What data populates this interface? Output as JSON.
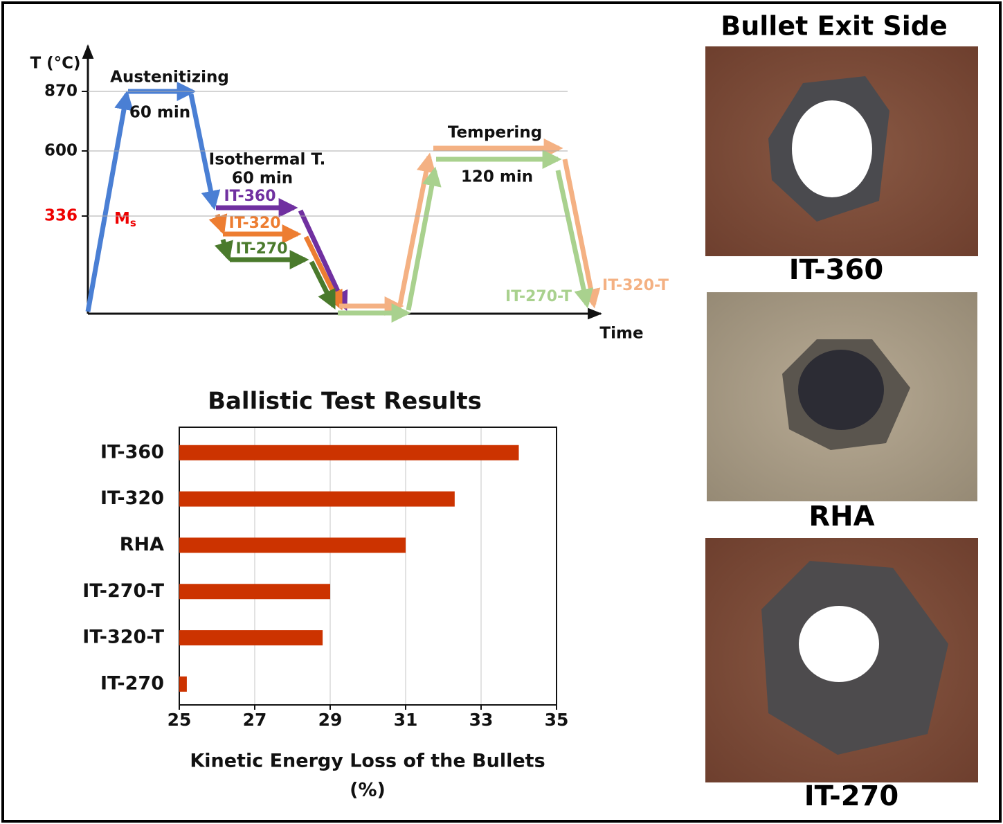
{
  "process_diagram": {
    "y_axis_label": "T (°C)",
    "x_axis_label": "Time",
    "temperatures": [
      870,
      600,
      336
    ],
    "ms_label": {
      "symbol": "M",
      "subscript": "s"
    },
    "austenitizing": "Austenitizing",
    "austenitizing_time": "60 min",
    "isothermal": "Isothermal T.",
    "isothermal_time": "60 min",
    "tempering": "Tempering",
    "tempering_time": "120 min",
    "routes": [
      "IT-360",
      "IT-320",
      "IT-270",
      "IT-270-T",
      "IT-320-T"
    ]
  },
  "chart_data": {
    "type": "bar",
    "orientation": "horizontal",
    "title": "Ballistic Test Results",
    "categories": [
      "IT-360",
      "IT-320",
      "RHA",
      "IT-270-T",
      "IT-320-T",
      "IT-270"
    ],
    "values": [
      34.0,
      32.3,
      31.0,
      29.0,
      28.8,
      25.2
    ],
    "color": "#cc3300",
    "xlim": [
      25,
      35
    ],
    "xticks": [
      25,
      27,
      29,
      31,
      33,
      35
    ],
    "x_label": [
      "Kinetic Energy Loss of the Bullets",
      "(%)"
    ],
    "grid": true
  },
  "photos": {
    "title": "Bullet Exit Side",
    "captions": [
      "IT-360",
      "RHA",
      "IT-270"
    ]
  }
}
